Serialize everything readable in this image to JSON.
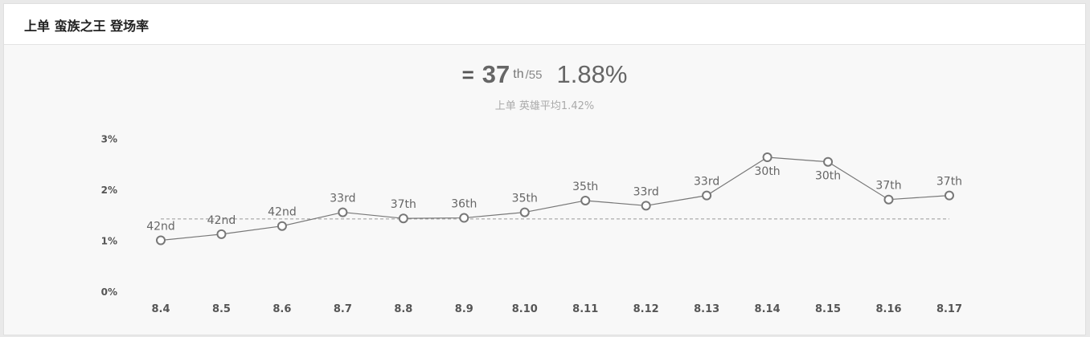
{
  "header": {
    "title": "上单 蛮族之王 登场率"
  },
  "summary": {
    "trend_symbol": "=",
    "rank": "37",
    "rank_suffix": "th",
    "rank_total": "/55",
    "rate": "1.88%",
    "average_text": "上单 英雄平均1.42%"
  },
  "colors": {
    "line": "#777777",
    "marker_fill": "#ffffff",
    "average_line": "#999999"
  },
  "chart_data": {
    "type": "line",
    "categories": [
      "8.4",
      "8.5",
      "8.6",
      "8.7",
      "8.8",
      "8.9",
      "8.10",
      "8.11",
      "8.12",
      "8.13",
      "8.14",
      "8.15",
      "8.16",
      "8.17"
    ],
    "values": [
      1.0,
      1.12,
      1.28,
      1.55,
      1.43,
      1.44,
      1.55,
      1.78,
      1.68,
      1.88,
      2.63,
      2.54,
      1.8,
      1.88
    ],
    "point_labels": [
      "42nd",
      "42nd",
      "42nd",
      "33rd",
      "37th",
      "36th",
      "35th",
      "35th",
      "33rd",
      "33rd",
      "30th",
      "30th",
      "37th",
      "37th"
    ],
    "label_below": [
      false,
      false,
      false,
      false,
      false,
      false,
      false,
      false,
      false,
      false,
      true,
      true,
      false,
      false
    ],
    "average": 1.42,
    "yticks": [
      {
        "value": 0,
        "label": "0%"
      },
      {
        "value": 1,
        "label": "1%"
      },
      {
        "value": 2,
        "label": "2%"
      },
      {
        "value": 3,
        "label": "3%"
      }
    ],
    "ylim": [
      0,
      3
    ],
    "grid": false,
    "xlabel": "",
    "ylabel": ""
  }
}
